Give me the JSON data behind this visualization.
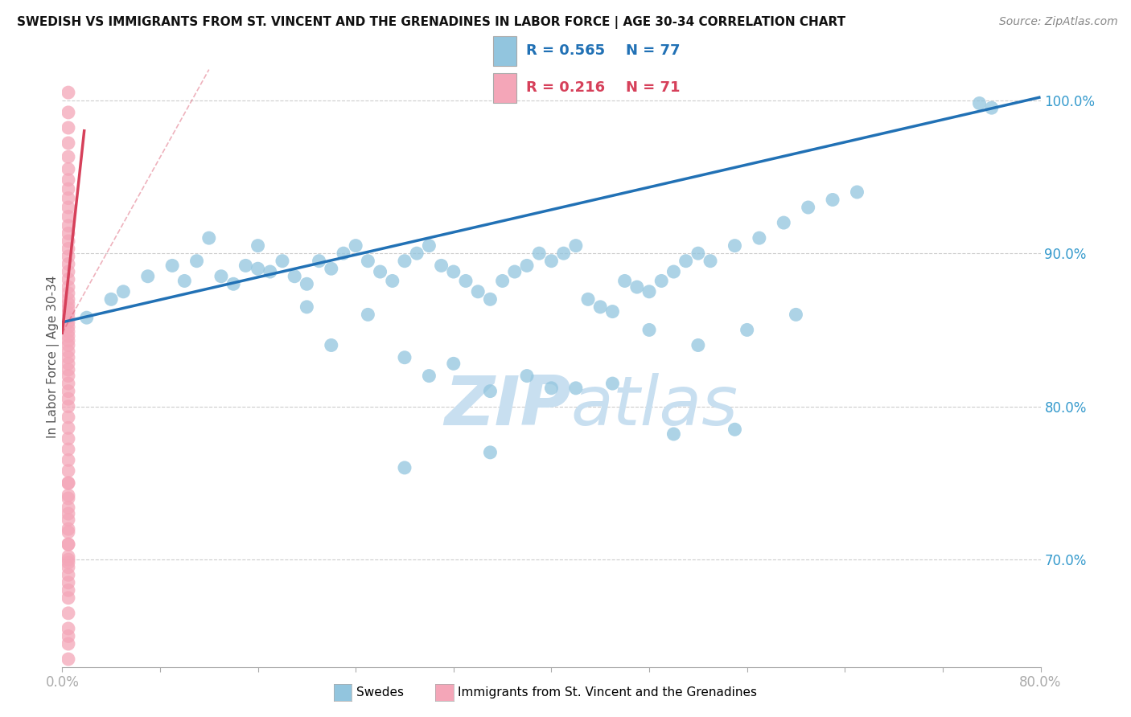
{
  "title": "SWEDISH VS IMMIGRANTS FROM ST. VINCENT AND THE GRENADINES IN LABOR FORCE | AGE 30-34 CORRELATION CHART",
  "source": "Source: ZipAtlas.com",
  "ylabel": "In Labor Force | Age 30-34",
  "legend_blue_label": "Swedes",
  "legend_pink_label": "Immigrants from St. Vincent and the Grenadines",
  "blue_R": 0.565,
  "blue_N": 77,
  "pink_R": 0.216,
  "pink_N": 71,
  "blue_color": "#92c5de",
  "pink_color": "#f4a6b8",
  "blue_line_color": "#2171b5",
  "pink_line_color": "#d6405a",
  "watermark_color": "#c8dff0",
  "xlim": [
    0.0,
    0.8
  ],
  "ylim": [
    0.63,
    1.035
  ],
  "blue_points_x": [
    0.02,
    0.04,
    0.05,
    0.07,
    0.09,
    0.1,
    0.11,
    0.12,
    0.13,
    0.14,
    0.15,
    0.16,
    0.16,
    0.17,
    0.18,
    0.19,
    0.2,
    0.21,
    0.22,
    0.23,
    0.24,
    0.25,
    0.26,
    0.27,
    0.28,
    0.29,
    0.3,
    0.31,
    0.32,
    0.33,
    0.34,
    0.35,
    0.36,
    0.37,
    0.38,
    0.39,
    0.4,
    0.41,
    0.42,
    0.43,
    0.44,
    0.45,
    0.46,
    0.47,
    0.48,
    0.49,
    0.5,
    0.51,
    0.52,
    0.53,
    0.55,
    0.57,
    0.59,
    0.61,
    0.63,
    0.65,
    0.48,
    0.52,
    0.56,
    0.6,
    0.2,
    0.25,
    0.3,
    0.35,
    0.4,
    0.45,
    0.5,
    0.55,
    0.22,
    0.28,
    0.32,
    0.38,
    0.42,
    0.28,
    0.35,
    0.75,
    0.76
  ],
  "blue_points_y": [
    0.858,
    0.87,
    0.875,
    0.885,
    0.892,
    0.882,
    0.895,
    0.91,
    0.885,
    0.88,
    0.892,
    0.905,
    0.89,
    0.888,
    0.895,
    0.885,
    0.88,
    0.895,
    0.89,
    0.9,
    0.905,
    0.895,
    0.888,
    0.882,
    0.895,
    0.9,
    0.905,
    0.892,
    0.888,
    0.882,
    0.875,
    0.87,
    0.882,
    0.888,
    0.892,
    0.9,
    0.895,
    0.9,
    0.905,
    0.87,
    0.865,
    0.862,
    0.882,
    0.878,
    0.875,
    0.882,
    0.888,
    0.895,
    0.9,
    0.895,
    0.905,
    0.91,
    0.92,
    0.93,
    0.935,
    0.94,
    0.85,
    0.84,
    0.85,
    0.86,
    0.865,
    0.86,
    0.82,
    0.81,
    0.812,
    0.815,
    0.782,
    0.785,
    0.84,
    0.832,
    0.828,
    0.82,
    0.812,
    0.76,
    0.77,
    0.998,
    0.995
  ],
  "pink_points_x": [
    0.005,
    0.005,
    0.005,
    0.005,
    0.005,
    0.005,
    0.005,
    0.005,
    0.005,
    0.005,
    0.005,
    0.005,
    0.005,
    0.005,
    0.005,
    0.005,
    0.005,
    0.005,
    0.005,
    0.005,
    0.005,
    0.005,
    0.005,
    0.005,
    0.005,
    0.005,
    0.005,
    0.005,
    0.005,
    0.005,
    0.005,
    0.005,
    0.005,
    0.005,
    0.005,
    0.005,
    0.005,
    0.005,
    0.005,
    0.005,
    0.005,
    0.005,
    0.005,
    0.005,
    0.005,
    0.005,
    0.005,
    0.005,
    0.005,
    0.005,
    0.005,
    0.005,
    0.005,
    0.005,
    0.005,
    0.005,
    0.005,
    0.005,
    0.005,
    0.005,
    0.005,
    0.005,
    0.005,
    0.005,
    0.005,
    0.005,
    0.005,
    0.005,
    0.005,
    0.005,
    0.005
  ],
  "pink_points_y": [
    1.005,
    0.992,
    0.982,
    0.972,
    0.963,
    0.955,
    0.948,
    0.942,
    0.936,
    0.93,
    0.924,
    0.918,
    0.913,
    0.908,
    0.903,
    0.898,
    0.893,
    0.888,
    0.883,
    0.878,
    0.874,
    0.87,
    0.867,
    0.864,
    0.861,
    0.858,
    0.855,
    0.852,
    0.849,
    0.846,
    0.843,
    0.84,
    0.836,
    0.832,
    0.828,
    0.824,
    0.82,
    0.815,
    0.81,
    0.805,
    0.8,
    0.793,
    0.786,
    0.779,
    0.772,
    0.765,
    0.758,
    0.75,
    0.742,
    0.734,
    0.726,
    0.718,
    0.71,
    0.702,
    0.698,
    0.72,
    0.73,
    0.74,
    0.75,
    0.69,
    0.68,
    0.7,
    0.71,
    0.695,
    0.685,
    0.675,
    0.665,
    0.655,
    0.645,
    0.635,
    0.65
  ],
  "blue_trend_x": [
    0.0,
    0.8
  ],
  "blue_trend_y": [
    0.855,
    1.002
  ],
  "pink_trend_x": [
    0.0,
    0.018
  ],
  "pink_trend_y": [
    0.848,
    0.98
  ]
}
